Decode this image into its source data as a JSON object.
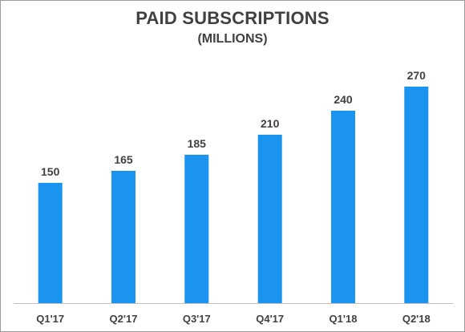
{
  "chart_data": {
    "type": "bar",
    "title": "PAID SUBSCRIPTIONS",
    "subtitle": "(MILLIONS)",
    "xlabel": "",
    "ylabel": "",
    "categories": [
      "Q1'17",
      "Q2'17",
      "Q3'17",
      "Q4'17",
      "Q1'18",
      "Q2'18"
    ],
    "values": [
      150,
      165,
      185,
      210,
      240,
      270
    ],
    "data_labels": [
      "150",
      "165",
      "185",
      "210",
      "240",
      "270"
    ],
    "ylim": [
      0,
      300
    ],
    "grid": false,
    "legend": "none",
    "bar_color": "#1a94ee",
    "axis_color": "#c0c0c0",
    "text_color": "#404040"
  }
}
